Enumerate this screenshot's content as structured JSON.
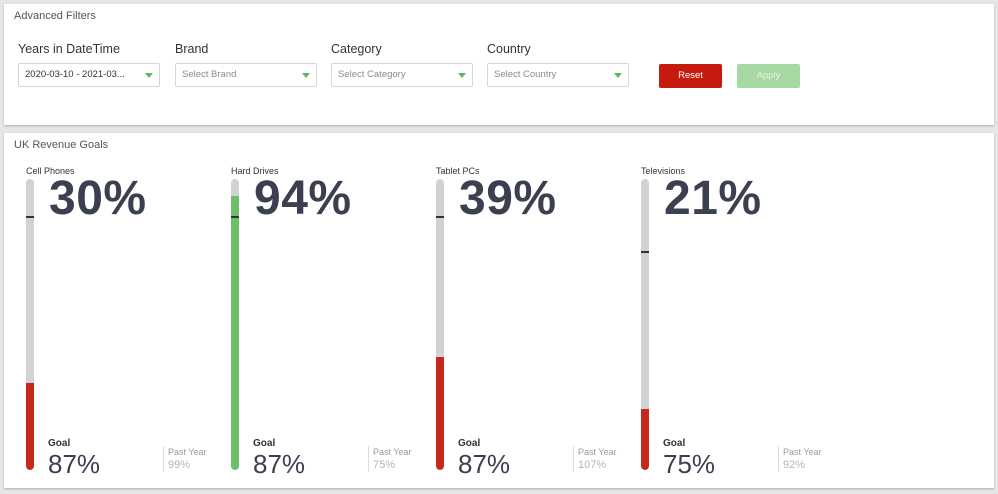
{
  "filters": {
    "title": "Advanced Filters",
    "fields": [
      {
        "label": "Years in DateTime",
        "value": "2020-03-10 - 2021-03...",
        "placeholder": ""
      },
      {
        "label": "Brand",
        "value": "",
        "placeholder": "Select Brand"
      },
      {
        "label": "Category",
        "value": "",
        "placeholder": "Select Category"
      },
      {
        "label": "Country",
        "value": "",
        "placeholder": "Select Country"
      }
    ],
    "reset_label": "Reset",
    "apply_label": "Apply",
    "apply_enabled": false
  },
  "goals": {
    "title": "UK Revenue Goals",
    "goal_heading": "Goal",
    "past_year_heading": "Past Year",
    "gauges": [
      {
        "name": "Cell Phones",
        "percent_text": "30%",
        "percent": 30,
        "goal_text": "87%",
        "goal": 87,
        "past_year_text": "99%",
        "color": "#c6281c"
      },
      {
        "name": "Hard Drives",
        "percent_text": "94%",
        "percent": 94,
        "goal_text": "87%",
        "goal": 87,
        "past_year_text": "75%",
        "color": "#6bbf66"
      },
      {
        "name": "Tablet PCs",
        "percent_text": "39%",
        "percent": 39,
        "goal_text": "87%",
        "goal": 87,
        "past_year_text": "107%",
        "color": "#c6281c"
      },
      {
        "name": "Televisions",
        "percent_text": "21%",
        "percent": 21,
        "goal_text": "75%",
        "goal": 75,
        "past_year_text": "92%",
        "color": "#c6281c"
      }
    ]
  },
  "colors": {
    "reset": "#c71a0e",
    "apply_disabled": "#a6d8a1",
    "below_goal": "#c6281c",
    "above_goal": "#6bbf66",
    "caret": "#5cb85c"
  }
}
